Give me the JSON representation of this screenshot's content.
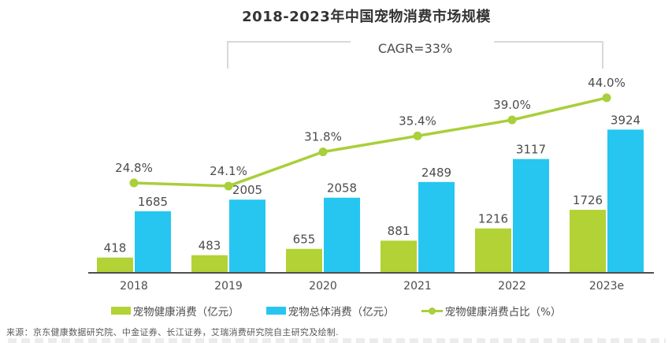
{
  "title": "2018-2023年中国宠物消费市场规模",
  "cagr": {
    "label": "CAGR=33%"
  },
  "chart_data": {
    "type": "bar",
    "subtype": "grouped-bars-with-line",
    "title": "2018-2023年中国宠物消费市场规模",
    "annotation": "CAGR=33%",
    "categories": [
      "2018",
      "2019",
      "2020",
      "2021",
      "2022",
      "2023e"
    ],
    "series": [
      {
        "key": "pet-health-consumption",
        "name": "宠物健康消费（亿元）",
        "kind": "bar",
        "color": "#b2d235",
        "values": [
          418,
          483,
          655,
          881,
          1216,
          1726
        ]
      },
      {
        "key": "pet-total-consumption",
        "name": "宠物总体消费（亿元）",
        "kind": "bar",
        "color": "#26c6f0",
        "values": [
          1685,
          2005,
          2058,
          2489,
          3117,
          3924
        ]
      },
      {
        "key": "health-consumption-ratio",
        "name": "宠物健康消费占比（%）",
        "kind": "line",
        "color": "#a9cf3b",
        "values": [
          24.8,
          24.1,
          31.8,
          35.4,
          39.0,
          44.0
        ],
        "value_labels": [
          "24.8%",
          "24.1%",
          "31.8%",
          "35.4%",
          "39.0%",
          "44.0%"
        ]
      }
    ],
    "xlabel": "",
    "ylabel": "",
    "left_axis_range": [
      0,
      5000
    ],
    "right_axis_range": [
      0,
      50
    ],
    "grid": false,
    "axes_visible": "x-only",
    "legend_position": "bottom",
    "colors": {
      "axis": "#4f4f4f",
      "bracket": "#d8d8d8",
      "label_text": "#4c4c4c"
    }
  },
  "source": "来源：京东健康数据研究院、中金证券、长江证券，艾瑞消费研究院自主研究及绘制."
}
